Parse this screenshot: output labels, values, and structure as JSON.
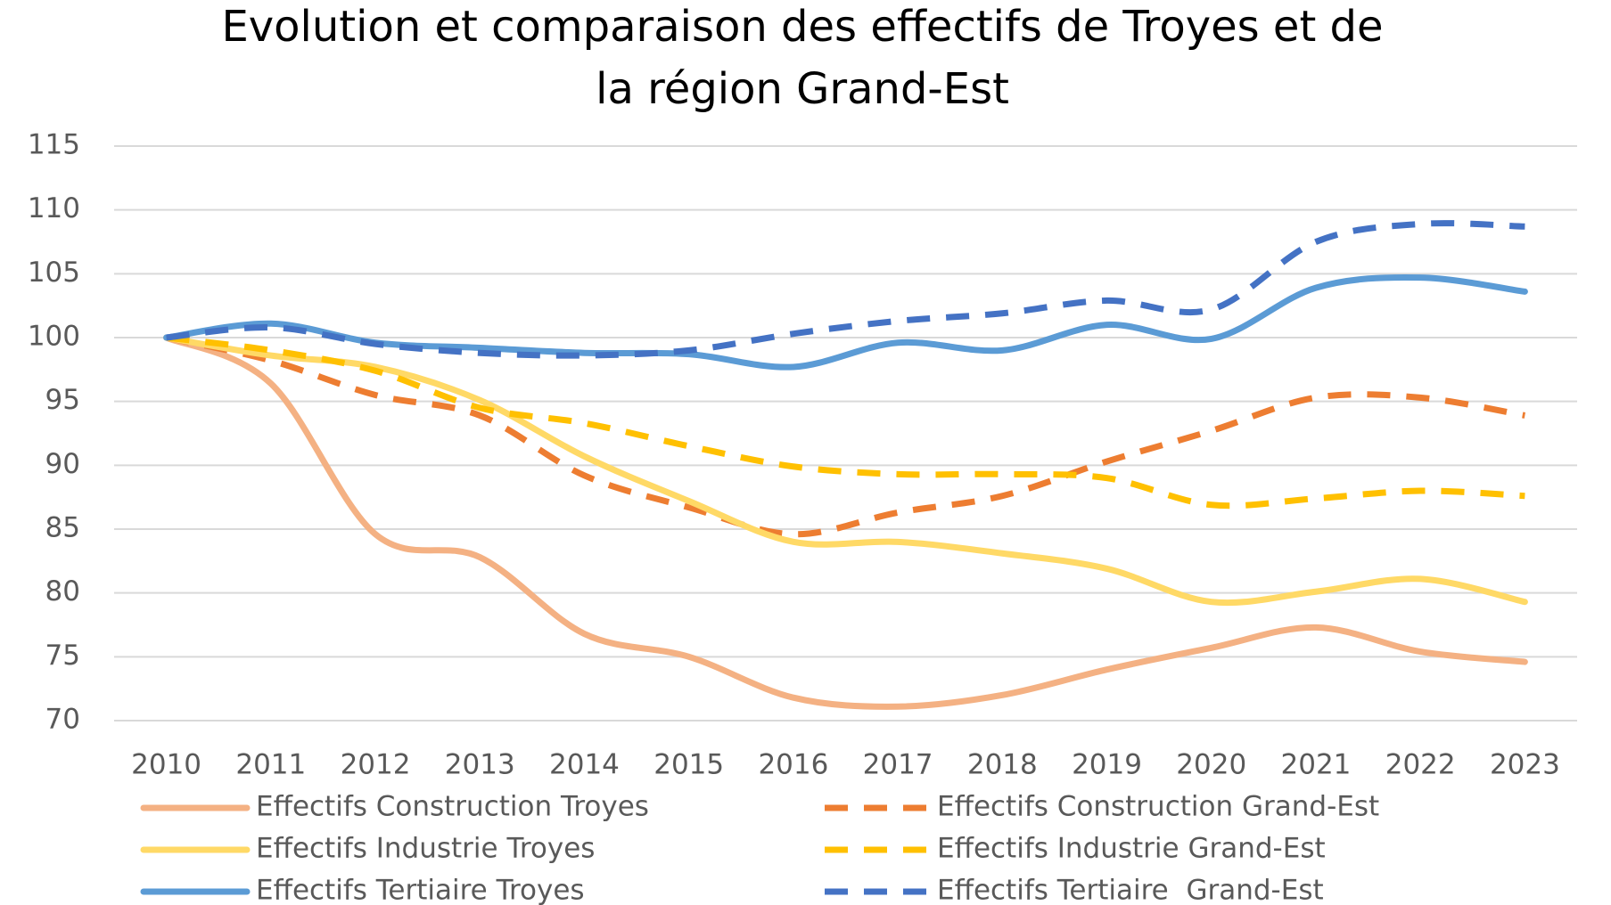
{
  "chart_data": {
    "type": "line",
    "title": [
      "Evolution et comparaison des effectifs de Troyes et de",
      "la région Grand-Est"
    ],
    "categories": [
      "2010",
      "2011",
      "2012",
      "2013",
      "2014",
      "2015",
      "2016",
      "2017",
      "2018",
      "2019",
      "2020",
      "2021",
      "2022",
      "2023"
    ],
    "ylim": [
      70,
      115
    ],
    "yticks": [
      70,
      75,
      80,
      85,
      90,
      95,
      100,
      105,
      110,
      115
    ],
    "grid": true,
    "legend": "bottom",
    "smooth": true,
    "series": [
      {
        "name": "Effectifs Construction Troyes",
        "color": "#f4b183",
        "dashed": false,
        "values": [
          100,
          96.4,
          84.6,
          82.8,
          76.8,
          75,
          71.8,
          71.1,
          72,
          74,
          75.7,
          77.3,
          75.4,
          74.6
        ]
      },
      {
        "name": "Effectifs Construction Grand-Est",
        "color": "#ed7d31",
        "dashed": true,
        "values": [
          100,
          98.2,
          95.5,
          93.9,
          89.2,
          86.7,
          84.6,
          86.3,
          87.6,
          90.3,
          92.7,
          95.3,
          95.3,
          93.9
        ]
      },
      {
        "name": "Effectifs Industrie Troyes",
        "color": "#ffd966",
        "dashed": false,
        "values": [
          100,
          98.6,
          97.7,
          95.1,
          90.7,
          87.2,
          84,
          84,
          83.1,
          81.9,
          79.3,
          80.1,
          81.1,
          79.3
        ]
      },
      {
        "name": "Effectifs Industrie Grand-Est",
        "color": "#ffc000",
        "dashed": true,
        "values": [
          100,
          99,
          97.4,
          94.5,
          93.3,
          91.5,
          89.9,
          89.3,
          89.3,
          89,
          86.9,
          87.4,
          88,
          87.6
        ]
      },
      {
        "name": "Effectifs Tertiaire Troyes",
        "color": "#5b9bd5",
        "dashed": false,
        "values": [
          100,
          101.1,
          99.6,
          99.2,
          98.8,
          98.7,
          97.7,
          99.6,
          99,
          101,
          99.9,
          103.9,
          104.7,
          103.6
        ]
      },
      {
        "name": "Effectifs Tertiaire  Grand-Est",
        "color": "#4472c4",
        "dashed": true,
        "values": [
          100,
          100.8,
          99.5,
          98.8,
          98.6,
          99,
          100.3,
          101.3,
          101.9,
          102.9,
          102.2,
          107.5,
          108.9,
          108.7
        ]
      }
    ]
  }
}
